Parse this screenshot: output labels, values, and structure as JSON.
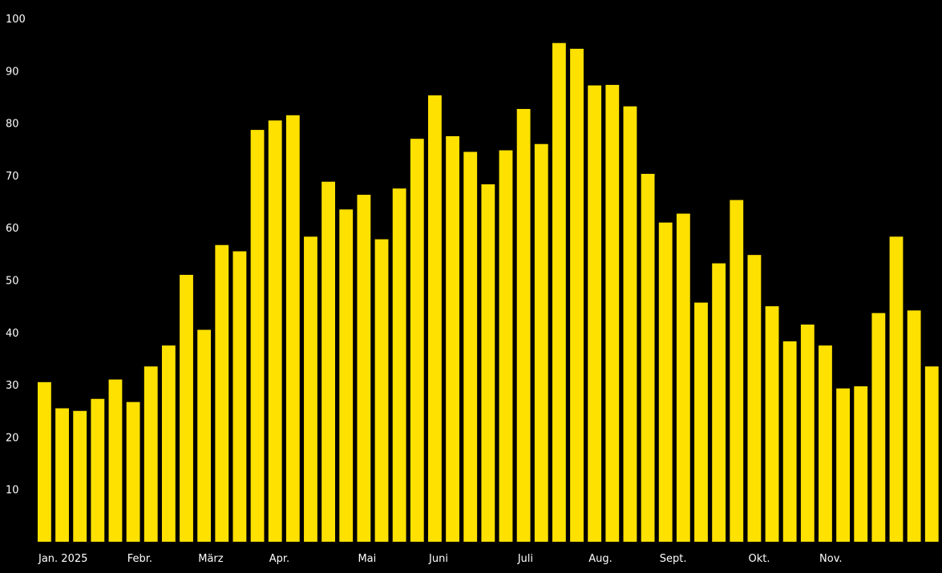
{
  "chart_data": {
    "type": "bar",
    "bar_color": "#FFE100",
    "background_color": "#000000",
    "text_color": "#FFFFFF",
    "title": "",
    "xlabel": "",
    "ylabel": "",
    "grid": false,
    "legend": "none",
    "ylim": [
      0,
      100
    ],
    "yticks": [
      10,
      20,
      30,
      40,
      50,
      60,
      70,
      80,
      90,
      100
    ],
    "values": [
      30.5,
      25.5,
      25,
      27.3,
      31,
      26.7,
      33.5,
      37.5,
      51,
      40.5,
      56.7,
      55.5,
      78.7,
      80.5,
      81.5,
      58.3,
      68.8,
      63.5,
      66.3,
      57.8,
      67.5,
      77,
      85.3,
      77.5,
      74.5,
      68.3,
      74.8,
      82.7,
      76,
      95.3,
      94.2,
      87.2,
      87.3,
      83.2,
      70.3,
      61,
      62.7,
      45.7,
      53.2,
      65.3,
      54.8,
      45,
      38.3,
      41.5,
      37.5,
      29.3,
      29.7,
      43.7,
      58.3,
      44.2,
      33.5
    ],
    "month_labels": [
      {
        "label": "Jan. 2025",
        "bar_index": 0
      },
      {
        "label": "Febr.",
        "bar_index": 5
      },
      {
        "label": "März",
        "bar_index": 9
      },
      {
        "label": "Apr.",
        "bar_index": 13
      },
      {
        "label": "Mai",
        "bar_index": 18
      },
      {
        "label": "Juni",
        "bar_index": 22
      },
      {
        "label": "Juli",
        "bar_index": 27
      },
      {
        "label": "Aug.",
        "bar_index": 31
      },
      {
        "label": "Sept.",
        "bar_index": 35
      },
      {
        "label": "Okt.",
        "bar_index": 40
      },
      {
        "label": "Nov.",
        "bar_index": 44
      }
    ]
  }
}
